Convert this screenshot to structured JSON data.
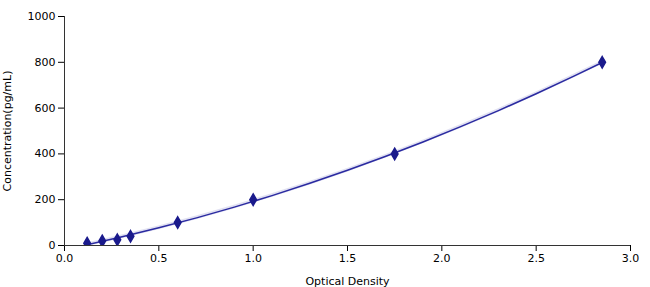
{
  "chart_data": {
    "type": "line",
    "xlabel": "Optical Density",
    "ylabel": "Concentration(pg/mL)",
    "xlim": [
      0.0,
      3.0
    ],
    "ylim": [
      0,
      1000
    ],
    "xticks": [
      {
        "value": 0,
        "label": "0.0"
      },
      0.5,
      {
        "value": 1.0,
        "label": "1.0"
      },
      1.5,
      {
        "value": 2.0,
        "label": "2.0"
      },
      2.5,
      {
        "value": 3.0,
        "label": "3.0"
      }
    ],
    "yticks": [
      0,
      200,
      400,
      600,
      800,
      1000
    ],
    "grid": false,
    "series": [
      {
        "type": "line",
        "color": "#2a2aa0",
        "line_style": "solid",
        "x": [
          0.12,
          0.3,
          0.5,
          0.7,
          0.9,
          1.1,
          1.3,
          1.5,
          1.7,
          1.9,
          2.1,
          2.3,
          2.5,
          2.7,
          2.85
        ],
        "values": [
          3.4,
          36.8,
          77.1,
          120.7,
          167.6,
          217.9,
          271.5,
          328.4,
          388.6,
          452.1,
          519.0,
          589.2,
          662.7,
          739.5,
          799.3
        ],
        "band_low": [
          -4.6,
          28.8,
          69.1,
          112.7,
          159.6,
          209.9,
          263.5,
          320.4,
          380.6,
          444.1,
          511.0,
          581.2,
          654.7,
          731.5,
          791.3
        ],
        "band_high": [
          11.4,
          44.8,
          85.1,
          128.7,
          175.6,
          225.9,
          279.5,
          336.4,
          396.6,
          460.1,
          527.0,
          597.2,
          670.7,
          747.5,
          807.3
        ],
        "band_color": "#8888cc"
      },
      {
        "type": "scatter",
        "color": "#1a1a8c",
        "marker": "diamond",
        "x": [
          0.12,
          0.2,
          0.28,
          0.35,
          0.6,
          1.0,
          1.75,
          2.85
        ],
        "values": [
          10,
          20,
          25,
          40,
          100,
          200,
          400,
          800
        ],
        "yerr": [
          4,
          4,
          4,
          6,
          8,
          10,
          10,
          10
        ]
      }
    ]
  }
}
